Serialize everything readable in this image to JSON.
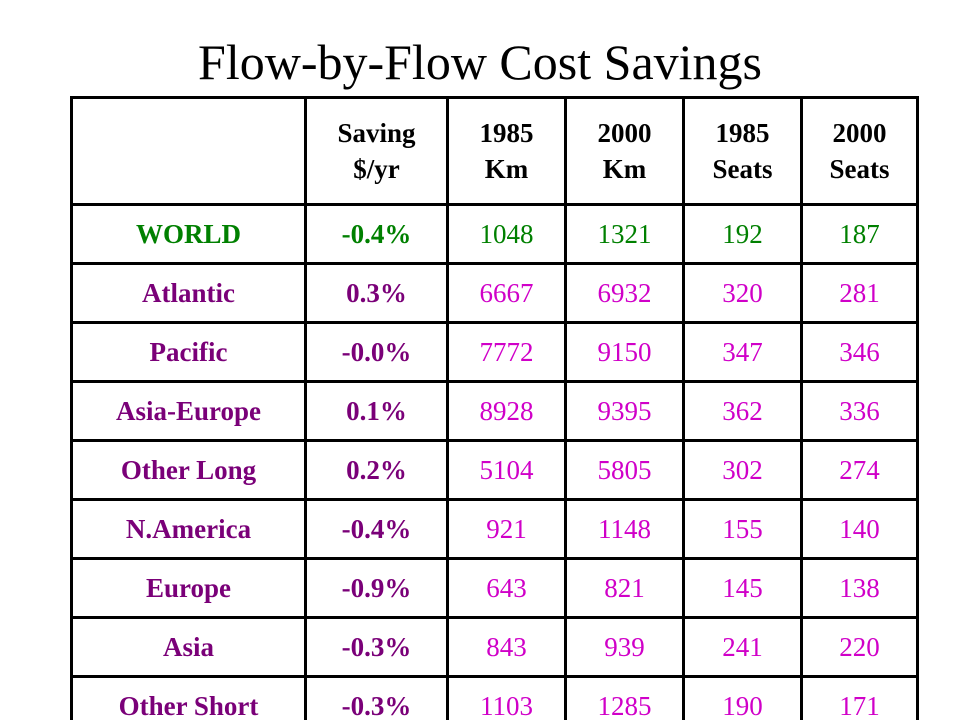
{
  "title": "Flow-by-Flow Cost Savings",
  "colors": {
    "world": "#008000",
    "region": "#7a0078",
    "value": "#d000c8",
    "header": "#000000",
    "border": "#000000"
  },
  "headers": [
    {
      "line1": "",
      "line2": ""
    },
    {
      "line1": "Saving",
      "line2": "$/yr"
    },
    {
      "line1": "1985",
      "line2": "Km"
    },
    {
      "line1": "2000",
      "line2": "Km"
    },
    {
      "line1": "1985",
      "line2": "Seats"
    },
    {
      "line1": "2000",
      "line2": "Seats"
    }
  ],
  "rows": [
    {
      "region": "WORLD",
      "saving": "-0.4%",
      "km1985": "1048",
      "km2000": "1321",
      "seats1985": "192",
      "seats2000": "187",
      "style": "world"
    },
    {
      "region": "Atlantic",
      "saving": "0.3%",
      "km1985": "6667",
      "km2000": "6932",
      "seats1985": "320",
      "seats2000": "281",
      "style": "region"
    },
    {
      "region": "Pacific",
      "saving": "-0.0%",
      "km1985": "7772",
      "km2000": "9150",
      "seats1985": "347",
      "seats2000": "346",
      "style": "region"
    },
    {
      "region": "Asia-Europe",
      "saving": "0.1%",
      "km1985": "8928",
      "km2000": "9395",
      "seats1985": "362",
      "seats2000": "336",
      "style": "region"
    },
    {
      "region": "Other Long",
      "saving": "0.2%",
      "km1985": "5104",
      "km2000": "5805",
      "seats1985": "302",
      "seats2000": "274",
      "style": "region"
    },
    {
      "region": "N.America",
      "saving": "-0.4%",
      "km1985": "921",
      "km2000": "1148",
      "seats1985": "155",
      "seats2000": "140",
      "style": "region"
    },
    {
      "region": "Europe",
      "saving": "-0.9%",
      "km1985": "643",
      "km2000": "821",
      "seats1985": "145",
      "seats2000": "138",
      "style": "region"
    },
    {
      "region": "Asia",
      "saving": "-0.3%",
      "km1985": "843",
      "km2000": "939",
      "seats1985": "241",
      "seats2000": "220",
      "style": "region"
    },
    {
      "region": "Other Short",
      "saving": "-0.3%",
      "km1985": "1103",
      "km2000": "1285",
      "seats1985": "190",
      "seats2000": "171",
      "style": "region"
    }
  ]
}
